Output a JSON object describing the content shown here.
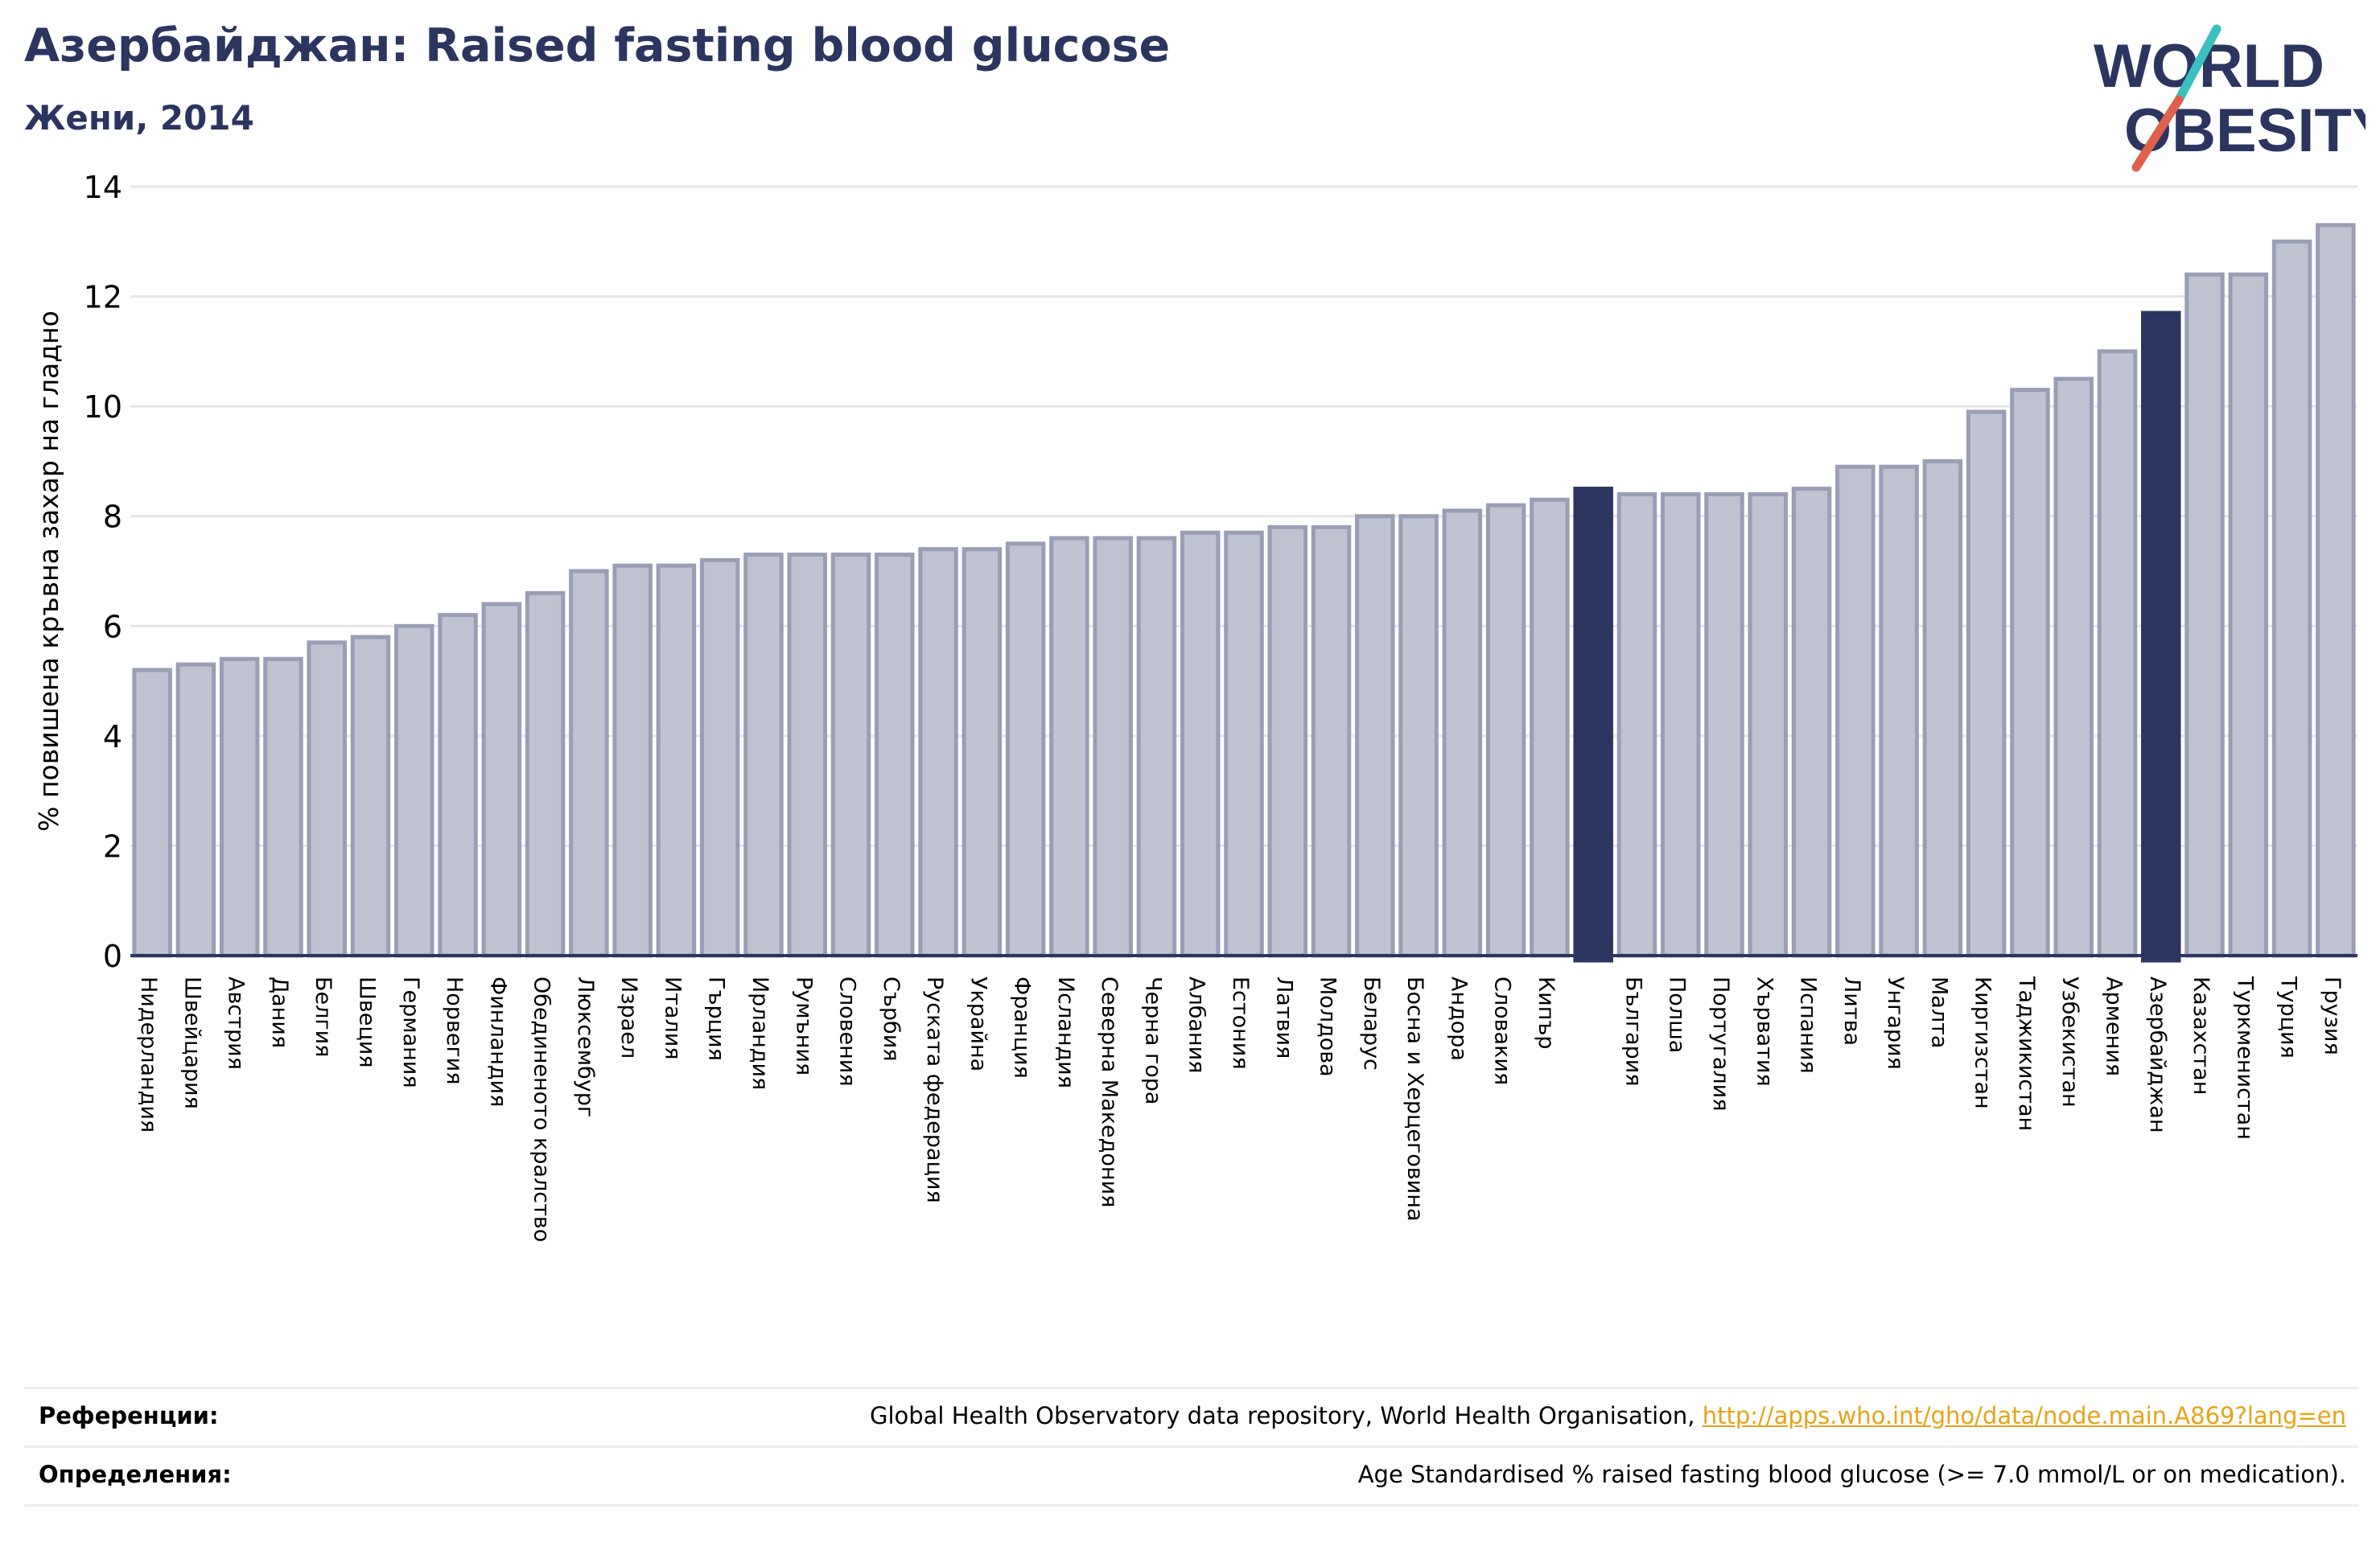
{
  "header": {
    "title": "Азербайджан: Raised fasting blood glucose",
    "subtitle": "Жени, 2014"
  },
  "logo": {
    "line1": "WORLD",
    "line2": "OBESITY"
  },
  "colors": {
    "bar_fill": "#bfc2d0",
    "bar_edge": "#9a9eb5",
    "highlight": "#2b3560",
    "title": "#2b3560",
    "link": "#e8a317",
    "logo_teal": "#3bbfbf",
    "logo_red": "#e0604e"
  },
  "chart_data": {
    "type": "bar",
    "title": "Азербайджан: Raised fasting blood glucose",
    "subtitle": "Жени, 2014",
    "xlabel": "",
    "ylabel": "% повишена кръвна захар на гладно",
    "ylim": [
      0,
      14
    ],
    "yticks": [
      0,
      2,
      4,
      6,
      8,
      10,
      12,
      14
    ],
    "grid": true,
    "legend": "none",
    "categories": [
      "Нидерландия",
      "Швейцария",
      "Австрия",
      "Дания",
      "Белгия",
      "Швеция",
      "Германия",
      "Норвегия",
      "Финландия",
      "Обединеното кралство",
      "Люксембург",
      "Израел",
      "Италия",
      "Гърция",
      "Ирландия",
      "Румъния",
      "Словения",
      "Сърбия",
      "Руската федерация",
      "Украйна",
      "Франция",
      "Исландия",
      "Северна Македония",
      "Черна гора",
      "Албания",
      "Естония",
      "Латвия",
      "Молдова",
      "Беларус",
      "Босна и Херцеговина",
      "Андора",
      "Словакия",
      "Кипър",
      "",
      "България",
      "Полша",
      "Португалия",
      "Хърватия",
      "Испания",
      "Литва",
      "Унгария",
      "Малта",
      "Киргизстан",
      "Таджикистан",
      "Узбекистан",
      "Армения",
      "Азербайджан",
      "Казахстан",
      "Туркменистан",
      "Турция",
      "Грузия"
    ],
    "values": [
      5.2,
      5.3,
      5.4,
      5.4,
      5.7,
      5.8,
      6.0,
      6.2,
      6.4,
      6.6,
      7.0,
      7.1,
      7.1,
      7.2,
      7.3,
      7.3,
      7.3,
      7.3,
      7.4,
      7.4,
      7.5,
      7.6,
      7.6,
      7.6,
      7.7,
      7.7,
      7.8,
      7.8,
      8.0,
      8.0,
      8.1,
      8.2,
      8.3,
      8.5,
      8.4,
      8.4,
      8.4,
      8.4,
      8.5,
      8.9,
      8.9,
      9.0,
      9.9,
      10.3,
      10.5,
      11.0,
      11.7,
      12.4,
      12.4,
      13.0,
      13.3
    ],
    "highlighted": [
      33,
      46
    ]
  },
  "references": {
    "ref_label": "Референции:",
    "ref_text": "Global Health Observatory data repository, World Health Organisation,",
    "ref_link": "http://apps.who.int/gho/data/node.main.A869?lang=en",
    "def_label": "Определения:",
    "def_text": "Age Standardised % raised fasting blood glucose (>= 7.0 mmol/L or on medication)."
  }
}
